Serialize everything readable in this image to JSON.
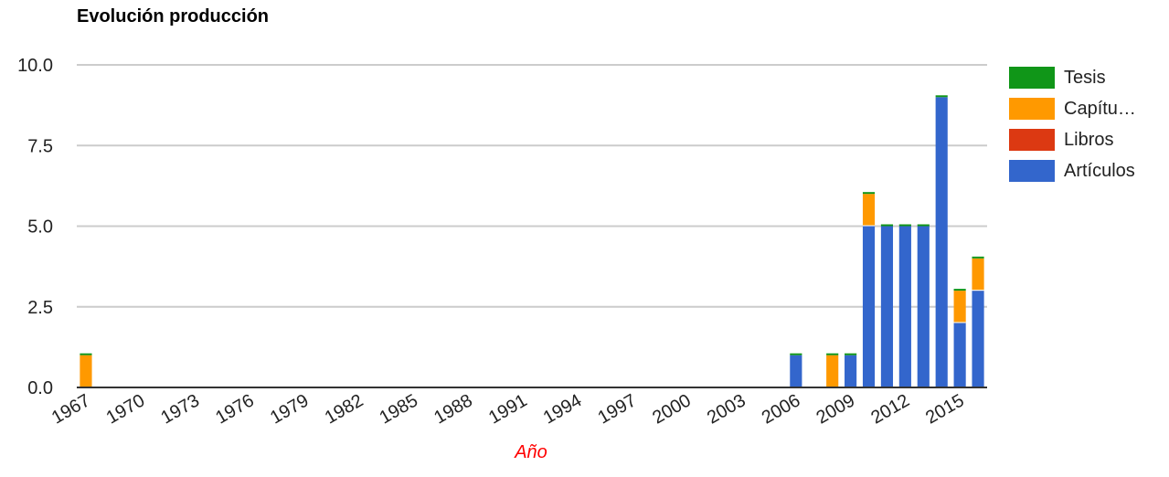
{
  "chart_data": {
    "type": "bar",
    "stacked": true,
    "title": "Evolución producción",
    "xlabel": "Año",
    "ylabel": "",
    "ylim": [
      0,
      10
    ],
    "yticks": [
      "0.0",
      "2.5",
      "5.0",
      "7.5",
      "10.0"
    ],
    "categories": [
      "1967",
      "1968",
      "1969",
      "1970",
      "1971",
      "1972",
      "1973",
      "1974",
      "1975",
      "1976",
      "1977",
      "1978",
      "1979",
      "1980",
      "1981",
      "1982",
      "1983",
      "1984",
      "1985",
      "1986",
      "1987",
      "1988",
      "1989",
      "1990",
      "1991",
      "1992",
      "1993",
      "1994",
      "1995",
      "1996",
      "1997",
      "1998",
      "1999",
      "2000",
      "2001",
      "2002",
      "2003",
      "2004",
      "2005",
      "2006",
      "2007",
      "2008",
      "2009",
      "2010",
      "2011",
      "2012",
      "2013",
      "2014",
      "2015",
      "2016"
    ],
    "xticks": [
      "1967",
      "1970",
      "1973",
      "1976",
      "1979",
      "1982",
      "1985",
      "1988",
      "1991",
      "1994",
      "1997",
      "2000",
      "2003",
      "2006",
      "2009",
      "2012",
      "2015"
    ],
    "series": [
      {
        "name": "Artículos",
        "color": "#3366cc",
        "values": [
          0,
          0,
          0,
          0,
          0,
          0,
          0,
          0,
          0,
          0,
          0,
          0,
          0,
          0,
          0,
          0,
          0,
          0,
          0,
          0,
          0,
          0,
          0,
          0,
          0,
          0,
          0,
          0,
          0,
          0,
          0,
          0,
          0,
          0,
          0,
          0,
          0,
          0,
          0,
          1,
          0,
          0,
          1,
          5,
          5,
          5,
          5,
          9,
          2,
          3
        ]
      },
      {
        "name": "Libros",
        "color": "#dc3912",
        "values": [
          0,
          0,
          0,
          0,
          0,
          0,
          0,
          0,
          0,
          0,
          0,
          0,
          0,
          0,
          0,
          0,
          0,
          0,
          0,
          0,
          0,
          0,
          0,
          0,
          0,
          0,
          0,
          0,
          0,
          0,
          0,
          0,
          0,
          0,
          0,
          0,
          0,
          0,
          0,
          0,
          0,
          0,
          0,
          0,
          0,
          0,
          0,
          0,
          0,
          0
        ]
      },
      {
        "name": "Capítu…",
        "color": "#ff9900",
        "values": [
          1,
          0,
          0,
          0,
          0,
          0,
          0,
          0,
          0,
          0,
          0,
          0,
          0,
          0,
          0,
          0,
          0,
          0,
          0,
          0,
          0,
          0,
          0,
          0,
          0,
          0,
          0,
          0,
          0,
          0,
          0,
          0,
          0,
          0,
          0,
          0,
          0,
          0,
          0,
          0,
          0,
          1,
          0,
          1,
          0,
          0,
          0,
          0,
          1,
          1
        ]
      },
      {
        "name": "Tesis",
        "color": "#109618",
        "values": [
          0,
          0,
          0,
          0,
          0,
          0,
          0,
          0,
          0,
          0,
          0,
          0,
          0,
          0,
          0,
          0,
          0,
          0,
          0,
          0,
          0,
          0,
          0,
          0,
          0,
          0,
          0,
          0,
          0,
          0,
          0,
          0,
          0,
          0,
          0,
          0,
          0,
          0,
          0,
          0,
          0,
          0,
          0,
          0,
          0,
          0,
          0,
          0,
          0,
          0
        ]
      }
    ],
    "legend": {
      "position": "right",
      "order": [
        "Tesis",
        "Capítu…",
        "Libros",
        "Artículos"
      ]
    },
    "grid": true
  }
}
